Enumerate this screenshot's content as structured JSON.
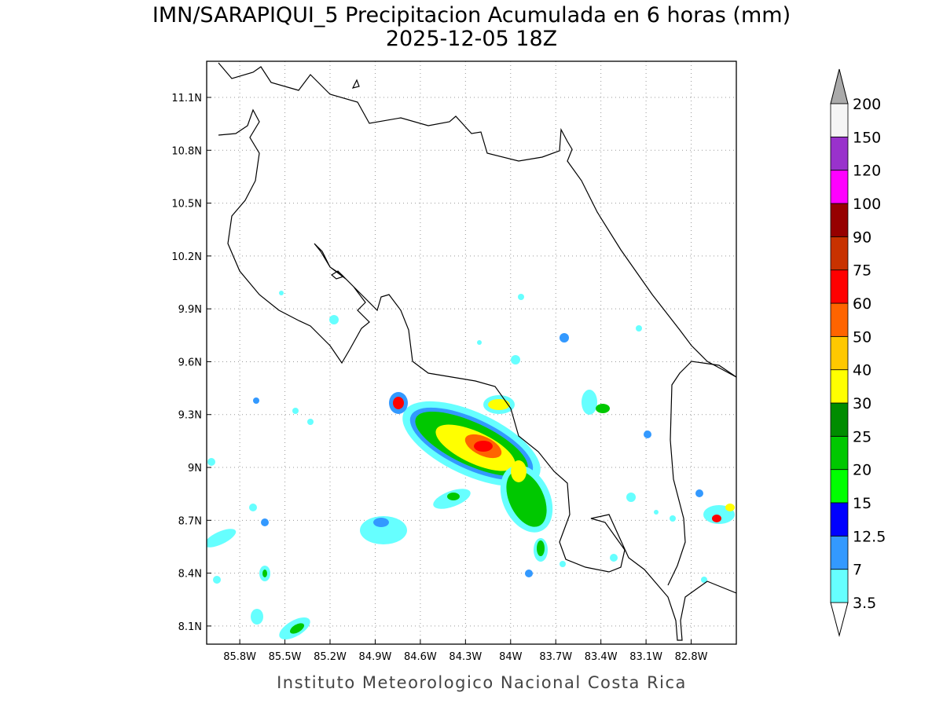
{
  "map": {
    "title": "IMN/SARAPIQUI_5 Precipitacion Acumulada en 6 horas (mm)",
    "subtitle": "2025-12-05 18Z",
    "footer": "Instituto Meteorologico Nacional Costa Rica",
    "xlim": [
      -86.02,
      -82.5
    ],
    "ylim": [
      7.997,
      11.305
    ],
    "xticks": [
      {
        "value": -85.8,
        "label": "85.8W"
      },
      {
        "value": -85.5,
        "label": "85.5W"
      },
      {
        "value": -85.2,
        "label": "85.2W"
      },
      {
        "value": -84.9,
        "label": "84.9W"
      },
      {
        "value": -84.6,
        "label": "84.6W"
      },
      {
        "value": -84.3,
        "label": "84.3W"
      },
      {
        "value": -84,
        "label": "84W"
      },
      {
        "value": -83.7,
        "label": "83.7W"
      },
      {
        "value": -83.4,
        "label": "83.4W"
      },
      {
        "value": -83.1,
        "label": "83.1W"
      },
      {
        "value": -82.8,
        "label": "82.8W"
      }
    ],
    "yticks": [
      {
        "value": 8.1,
        "label": "8.1N"
      },
      {
        "value": 8.4,
        "label": "8.4N"
      },
      {
        "value": 8.7,
        "label": "8.7N"
      },
      {
        "value": 9,
        "label": "9N"
      },
      {
        "value": 9.3,
        "label": "9.3N"
      },
      {
        "value": 9.6,
        "label": "9.6N"
      },
      {
        "value": 9.9,
        "label": "9.9N"
      },
      {
        "value": 10.2,
        "label": "10.2N"
      },
      {
        "value": 10.5,
        "label": "10.5N"
      },
      {
        "value": 10.8,
        "label": "10.8N"
      },
      {
        "value": 11.1,
        "label": "11.1N"
      }
    ],
    "grid": true
  },
  "colorbar": {
    "levels": [
      3.5,
      7,
      12.5,
      15,
      20,
      25,
      30,
      40,
      50,
      60,
      75,
      90,
      100,
      120,
      150,
      200
    ],
    "colors": [
      "#66ffff",
      "#3399ff",
      "#0000ff",
      "#00ff00",
      "#00c800",
      "#008c00",
      "#ffff00",
      "#ffc800",
      "#ff6400",
      "#ff0000",
      "#c83200",
      "#960000",
      "#ff00ff",
      "#9932cc",
      "#f5f5f5"
    ],
    "under_color": "#ffffff",
    "over_color": "#aaaaaa"
  }
}
